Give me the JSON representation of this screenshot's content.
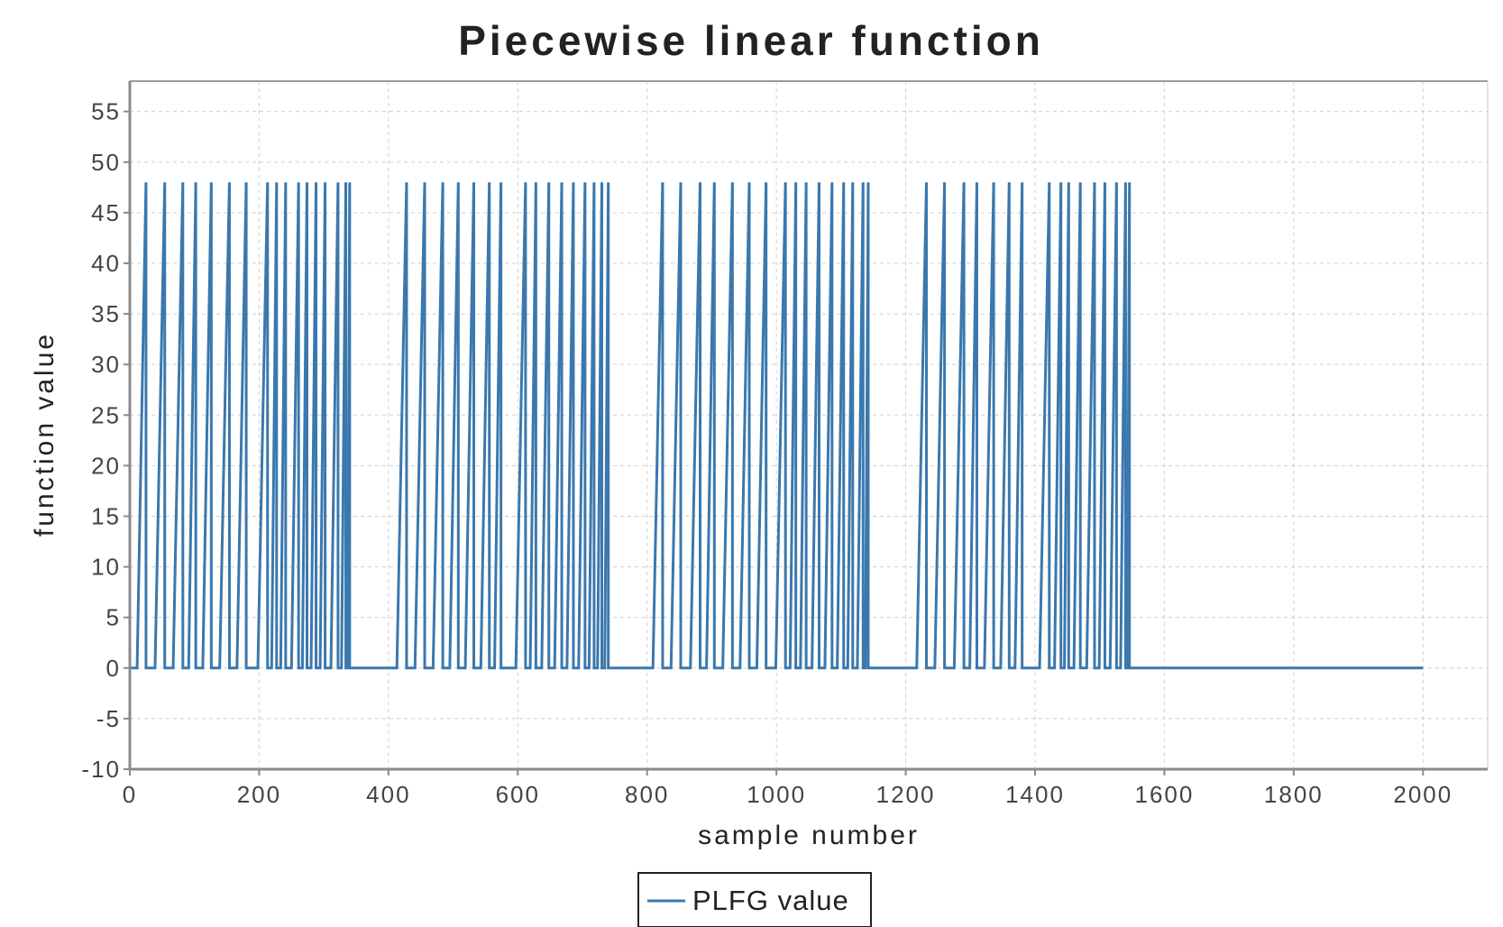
{
  "chart_data": {
    "type": "line",
    "title": "Piecewise linear function",
    "xlabel": "sample number",
    "ylabel": "function value",
    "xlim": [
      0,
      2100
    ],
    "ylim": [
      -10,
      58
    ],
    "x_ticks": [
      0,
      200,
      400,
      600,
      800,
      1000,
      1200,
      1400,
      1600,
      1800,
      2000
    ],
    "y_ticks": [
      -10,
      -5,
      0,
      5,
      10,
      15,
      20,
      25,
      30,
      35,
      40,
      45,
      50,
      55
    ],
    "grid": true,
    "legend_position": "bottom-center",
    "series": [
      {
        "name": "PLFG value",
        "color": "#3a78ad",
        "pulse_peak": 48,
        "pulse_peaks_x": [
          25,
          54,
          82,
          102,
          126,
          154,
          180,
          213,
          227,
          241,
          261,
          274,
          288,
          302,
          322,
          334,
          340,
          428,
          456,
          484,
          508,
          532,
          556,
          574,
          612,
          628,
          648,
          668,
          686,
          704,
          718,
          730,
          740,
          824,
          852,
          882,
          904,
          932,
          958,
          984,
          1014,
          1030,
          1046,
          1066,
          1086,
          1104,
          1118,
          1134,
          1142,
          1232,
          1260,
          1290,
          1310,
          1336,
          1360,
          1380,
          1422,
          1440,
          1452,
          1470,
          1492,
          1508,
          1526,
          1540,
          1546
        ],
        "x_end": 2000,
        "baseline": 0
      }
    ]
  }
}
